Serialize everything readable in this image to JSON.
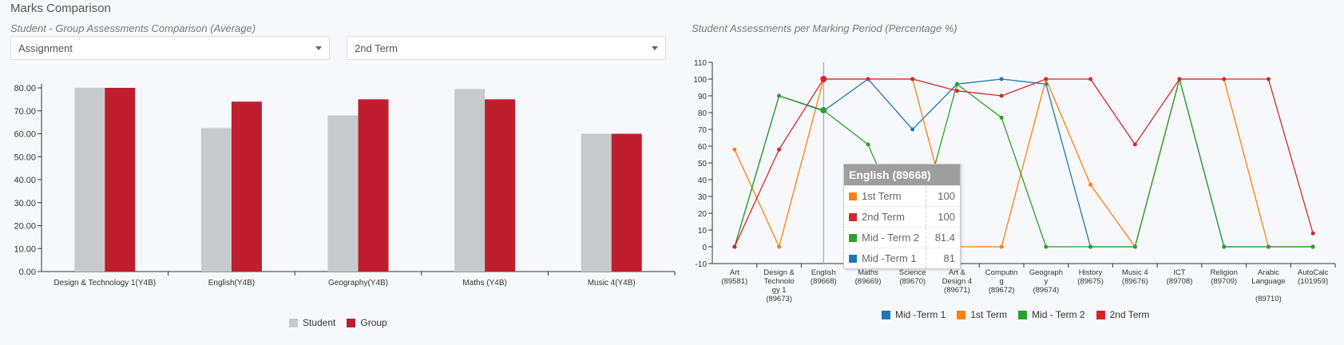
{
  "page": {
    "title": "Marks Comparison"
  },
  "left_panel": {
    "title": "Student - Group Assessments Comparison (Average)",
    "select_type": {
      "value": "Assignment"
    },
    "select_term": {
      "value": "2nd Term"
    }
  },
  "right_panel": {
    "title": "Student Assessments per Marking Period (Percentage %)"
  },
  "tooltip": {
    "title": "English (89668)",
    "rows": [
      {
        "name": "1st Term",
        "value": "100",
        "color": "#ff7f0e"
      },
      {
        "name": "2nd Term",
        "value": "100",
        "color": "#d62728"
      },
      {
        "name": "Mid - Term 2",
        "value": "81.4",
        "color": "#2ca02c"
      },
      {
        "name": "Mid -Term 1",
        "value": "81",
        "color": "#1f77b4"
      }
    ]
  },
  "chart_data": [
    {
      "type": "bar",
      "categories": [
        "Design & Technology 1(Y4B)",
        "English(Y4B)",
        "Geography(Y4B)",
        "Maths (Y4B)",
        "Music 4(Y4B)"
      ],
      "series": [
        {
          "name": "Student",
          "color": "#c8c9cb",
          "values": [
            80,
            62.5,
            68,
            79.5,
            60
          ]
        },
        {
          "name": "Group",
          "color": "#be1e2d",
          "values": [
            80,
            74,
            75,
            75,
            60
          ]
        }
      ],
      "ylim": [
        0,
        80
      ],
      "yticks": [
        "0.00",
        "10.00",
        "20.00",
        "30.00",
        "40.00",
        "50.00",
        "60.00",
        "70.00",
        "80.00"
      ],
      "legend": "bottom"
    },
    {
      "type": "line",
      "categories": [
        [
          "Art",
          "(89581)"
        ],
        [
          "Design &",
          "Technolo",
          "gy 1",
          "(89673)"
        ],
        [
          "English",
          "(89668)"
        ],
        [
          "Maths",
          "(89669)"
        ],
        [
          "Science",
          "(89670)"
        ],
        [
          "Art &",
          "Design 4",
          "(89671)"
        ],
        [
          "Computin",
          "g",
          "(89672)"
        ],
        [
          "Geograph",
          "y",
          "(89674)"
        ],
        [
          "History",
          "(89675)"
        ],
        [
          "Music 4",
          "(89676)"
        ],
        [
          "ICT",
          "(89708)"
        ],
        [
          "Religion",
          "(89709)"
        ],
        [
          "Arabic",
          "Language",
          "",
          "(89710)"
        ],
        [
          "AutoCalc",
          "(101959)"
        ]
      ],
      "series": [
        {
          "name": "Mid -Term 1",
          "color": "#1f77b4",
          "values": [
            0,
            90,
            81,
            100,
            70,
            97,
            100,
            97,
            0,
            0,
            100,
            0,
            0,
            0
          ]
        },
        {
          "name": "1st Term",
          "color": "#ff7f0e",
          "values": [
            58,
            0,
            100,
            100,
            100,
            0,
            0,
            100,
            37,
            0,
            100,
            100,
            0,
            0
          ]
        },
        {
          "name": "Mid - Term 2",
          "color": "#2ca02c",
          "values": [
            0,
            90,
            81.4,
            61,
            0,
            97,
            77,
            0,
            0,
            0,
            100,
            0,
            0,
            0
          ]
        },
        {
          "name": "2nd Term",
          "color": "#d62728",
          "values": [
            0,
            58,
            100,
            100,
            100,
            93,
            90,
            100,
            100,
            61,
            100,
            100,
            100,
            8
          ]
        }
      ],
      "ylim": [
        -10,
        110
      ],
      "yticks": [
        -10,
        0,
        10,
        20,
        30,
        40,
        50,
        60,
        70,
        80,
        90,
        100,
        110
      ],
      "highlight_category_index": 2,
      "legend": "bottom"
    }
  ]
}
